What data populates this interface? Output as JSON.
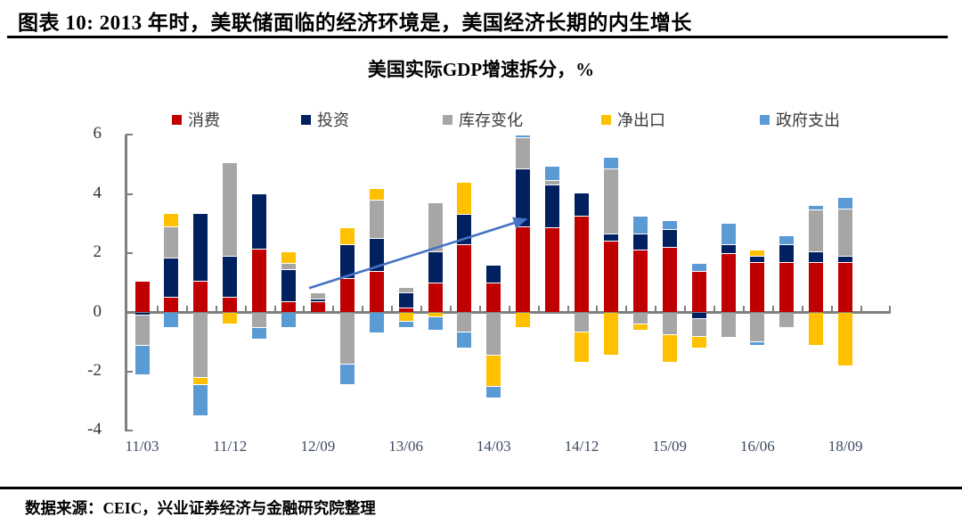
{
  "header": {
    "title": "图表 10:  2013 年时，美联储面临的经济环境是，美国经济长期的内生增长"
  },
  "chart": {
    "title": "美国实际GDP增速拆分，%"
  },
  "chart_data": {
    "type": "bar",
    "stacked": true,
    "title": "美国实际GDP增速拆分，%",
    "ylabel": "",
    "xlabel": "",
    "ylim": [
      -4,
      6
    ],
    "y_ticks": [
      6,
      4,
      2,
      0,
      -2,
      -4
    ],
    "grid": false,
    "legend_position": "top",
    "axis_color": "#7f7f7f",
    "categories": [
      "11/03",
      "",
      "",
      "11/12",
      "",
      "",
      "12/09",
      "",
      "",
      "13/06",
      "",
      "",
      "14/03",
      "",
      "",
      "14/12",
      "",
      "",
      "15/09",
      "",
      "",
      "16/06",
      "",
      "",
      "18/09"
    ],
    "series": [
      {
        "name": "消费",
        "color": "#C00000",
        "values": [
          1.05,
          0.5,
          1.05,
          0.5,
          2.15,
          0.35,
          0.35,
          1.15,
          1.4,
          0.15,
          1.0,
          2.3,
          1.0,
          2.9,
          2.85,
          3.25,
          2.4,
          2.1,
          2.2,
          1.4,
          2.0,
          1.7,
          1.7,
          1.7,
          1.7
        ]
      },
      {
        "name": "投资",
        "color": "#002060",
        "values": [
          -0.1,
          1.35,
          2.3,
          1.4,
          1.85,
          1.1,
          0.1,
          1.15,
          1.1,
          0.5,
          1.05,
          1.0,
          0.6,
          1.95,
          1.45,
          0.8,
          0.25,
          0.55,
          0.6,
          -0.2,
          0.3,
          0.2,
          0.6,
          0.35,
          0.2
        ]
      },
      {
        "name": "库存变化",
        "color": "#A6A6A6",
        "values": [
          -1.0,
          1.05,
          -2.2,
          3.15,
          -0.5,
          0.2,
          0.2,
          -1.75,
          1.3,
          0.2,
          1.65,
          -0.65,
          -1.45,
          1.05,
          0.15,
          -0.65,
          2.2,
          -0.4,
          -0.75,
          -0.6,
          -0.85,
          -1.0,
          -0.5,
          1.4,
          1.6
        ]
      },
      {
        "name": "净出口",
        "color": "#FFC000",
        "values": [
          0,
          0.45,
          -0.25,
          -0.4,
          0,
          0.4,
          0,
          0.55,
          0.4,
          -0.3,
          -0.15,
          1.1,
          -1.05,
          -0.5,
          0,
          -1.05,
          -1.45,
          -0.2,
          -0.95,
          -0.4,
          0,
          0.2,
          0,
          -1.1,
          -1.8
        ]
      },
      {
        "name": "政府支出",
        "color": "#5B9BD5",
        "values": [
          -1.0,
          -0.5,
          -1.05,
          0,
          -0.4,
          -0.5,
          0,
          -0.7,
          -0.7,
          -0.2,
          -0.45,
          -0.55,
          -0.4,
          0.1,
          0.5,
          0,
          0.4,
          0.6,
          0.3,
          0.25,
          0.7,
          -0.1,
          0.3,
          0.15,
          0.4
        ]
      }
    ],
    "annotation_arrow": {
      "from_bar_index": 5.7,
      "from_value": 0.82,
      "to_bar_index": 13.1,
      "to_value": 3.15,
      "color": "#4472C4"
    }
  },
  "footer": {
    "source": "数据来源：CEIC，兴业证券经济与金融研究院整理"
  }
}
